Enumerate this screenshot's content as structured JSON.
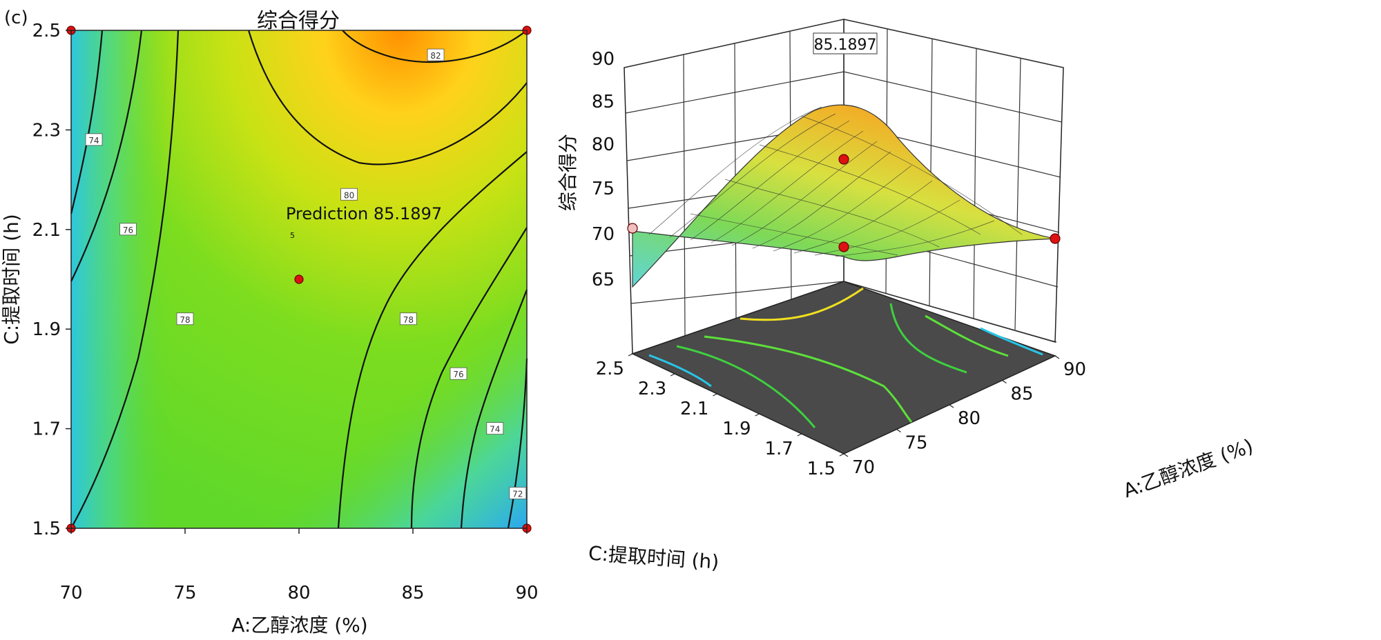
{
  "panel_label": "(c)",
  "prediction_label": "Prediction 85.1897",
  "design_point_label": "5",
  "chart_data": [
    {
      "type": "contour",
      "title": "综合得分",
      "xlabel": "A:乙醇浓度 (%)",
      "ylabel": "C:提取时间 (h)",
      "xlim": [
        70,
        90
      ],
      "ylim": [
        1.5,
        2.5
      ],
      "xticks": [
        "70",
        "75",
        "80",
        "85",
        "90"
      ],
      "yticks": [
        "1.5",
        "1.7",
        "1.9",
        "2.1",
        "2.3",
        "2.5"
      ],
      "contour_levels": [
        "72",
        "74",
        "76",
        "78",
        "80",
        "82"
      ],
      "contour_labels": [
        {
          "text": "74",
          "x": 71,
          "y": 2.28
        },
        {
          "text": "76",
          "x": 72.5,
          "y": 2.1
        },
        {
          "text": "78",
          "x": 75,
          "y": 1.92
        },
        {
          "text": "80",
          "x": 82.2,
          "y": 2.17
        },
        {
          "text": "82",
          "x": 86,
          "y": 2.45
        },
        {
          "text": "78",
          "x": 84.8,
          "y": 1.92
        },
        {
          "text": "76",
          "x": 87,
          "y": 1.81
        },
        {
          "text": "74",
          "x": 88.6,
          "y": 1.7
        },
        {
          "text": "72",
          "x": 89.6,
          "y": 1.57
        }
      ],
      "design_points": [
        {
          "x": 70,
          "y": 2.5
        },
        {
          "x": 90,
          "y": 2.5
        },
        {
          "x": 70,
          "y": 1.5
        },
        {
          "x": 90,
          "y": 1.5
        },
        {
          "x": 80,
          "y": 2.0
        }
      ],
      "colormap": [
        "#29b6f6",
        "#3fd5c0",
        "#66dd33",
        "#aadd11",
        "#eedd11",
        "#ffb000",
        "#ff8800"
      ]
    },
    {
      "type": "surface3d",
      "zlabel": "综合得分",
      "xlabel": "A:乙醇浓度 (%)",
      "ylabel": "C:提取时间 (h)",
      "zticks": [
        "65",
        "70",
        "75",
        "80",
        "85",
        "90"
      ],
      "xticks": [
        "70",
        "75",
        "80",
        "85",
        "90"
      ],
      "yticks": [
        "1.5",
        "1.7",
        "1.9",
        "2.1",
        "2.3",
        "2.5"
      ],
      "zlim": [
        65,
        90
      ],
      "annotation": "85.1897",
      "design_points": [
        {
          "x": 80,
          "y": 2.0,
          "z": 85.19
        },
        {
          "x": 70,
          "y": 2.5,
          "z": 71.0
        },
        {
          "x": 70,
          "y": 1.5,
          "z": 71.0
        },
        {
          "x": 90,
          "y": 1.5,
          "z": 71.0
        }
      ],
      "floor_color": "#4a4a4a"
    }
  ]
}
